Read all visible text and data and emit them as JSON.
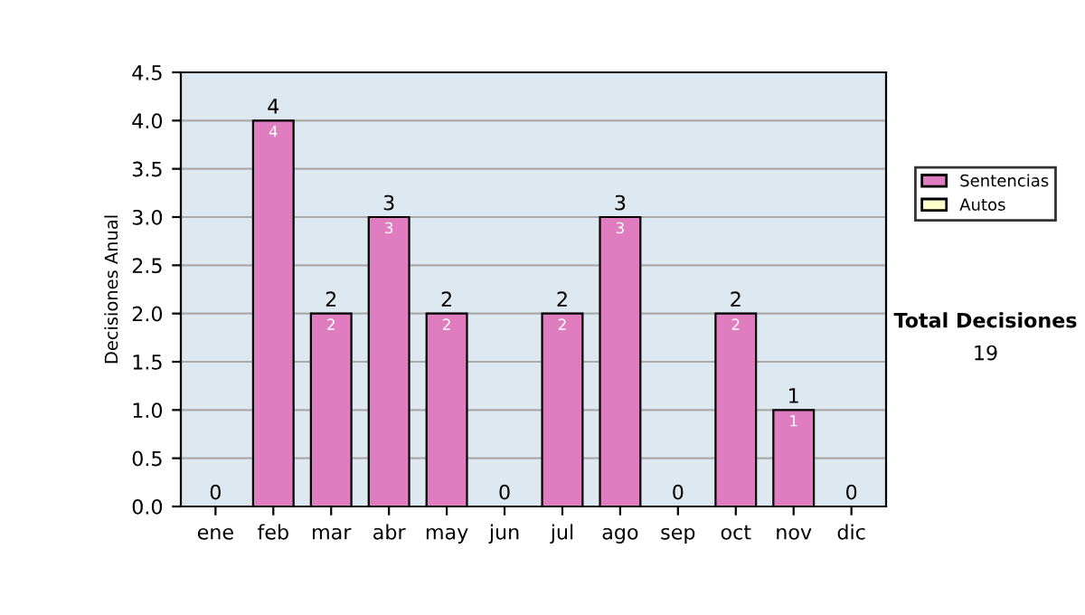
{
  "chart_data": {
    "type": "bar",
    "ylabel": "Decisiones Anual",
    "categories": [
      "ene",
      "feb",
      "mar",
      "abr",
      "may",
      "jun",
      "jul",
      "ago",
      "sep",
      "oct",
      "nov",
      "dic"
    ],
    "stacked": true,
    "series": [
      {
        "name": "Sentencias",
        "color": "#e07cc0",
        "values": [
          0,
          4,
          2,
          3,
          2,
          0,
          2,
          3,
          0,
          2,
          1,
          0
        ],
        "value_labels": [
          null,
          "4",
          "2",
          "3",
          "2",
          null,
          "2",
          "3",
          null,
          "2",
          "1",
          null
        ]
      },
      {
        "name": "Autos",
        "color": "#ffffcc",
        "values": [
          0,
          0,
          0,
          0,
          0,
          0,
          0,
          0,
          0,
          0,
          0,
          0
        ]
      }
    ],
    "totals": [
      "0",
      "4",
      "2",
      "3",
      "2",
      "0",
      "2",
      "3",
      "0",
      "2",
      "1",
      "0"
    ],
    "ylim": [
      0,
      4.5
    ],
    "yticks": [
      {
        "value": 0,
        "label": "0.0"
      },
      {
        "value": 0.5,
        "label": "0.5"
      },
      {
        "value": 1,
        "label": "1.0"
      },
      {
        "value": 1.5,
        "label": "1.5"
      },
      {
        "value": 2,
        "label": "2.0"
      },
      {
        "value": 2.5,
        "label": "2.5"
      },
      {
        "value": 3,
        "label": "3.0"
      },
      {
        "value": 3.5,
        "label": "3.5"
      },
      {
        "value": 4,
        "label": "4.0"
      },
      {
        "value": 4.5,
        "label": "4.5"
      }
    ],
    "grid": "y",
    "legend": "right",
    "annotations": [
      "Total Decisiones",
      "19"
    ]
  }
}
